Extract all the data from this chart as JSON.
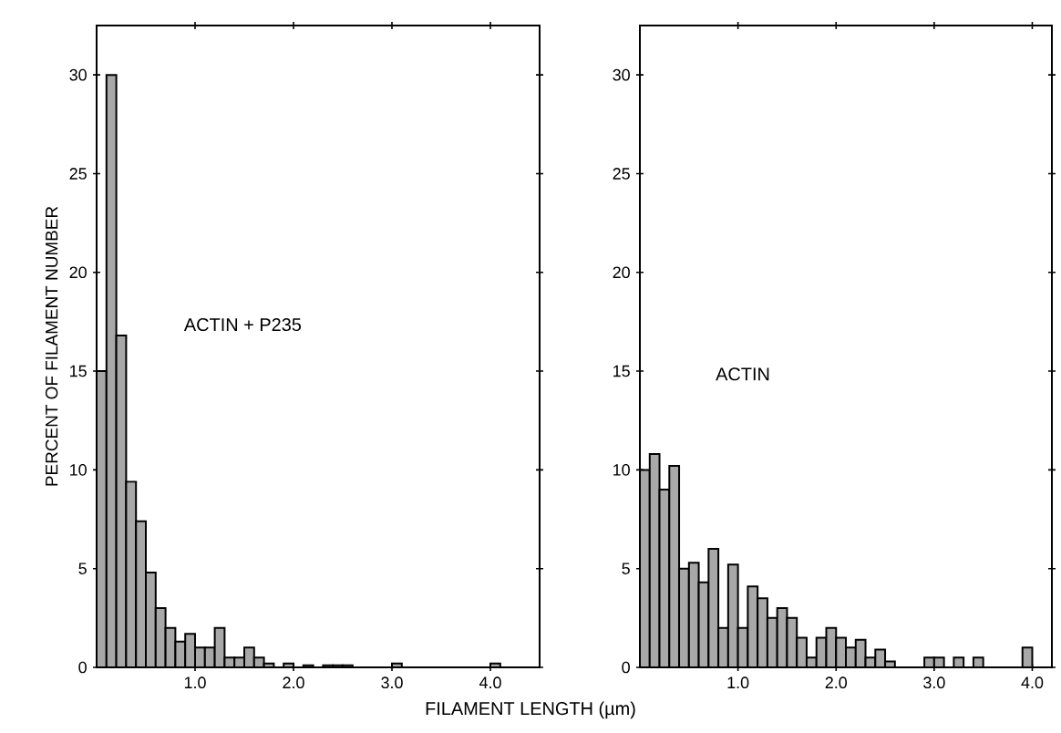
{
  "chart_data": [
    {
      "type": "histogram",
      "ylabel": "PERCENT OF FILAMENT NUMBER",
      "xlabel": "FILAMENT LENGTH (µm)",
      "annotations": [
        "ACTIN + P235"
      ],
      "color": "#a8a8a8",
      "bins": [
        0,
        0.1,
        0.2,
        0.3,
        0.4,
        0.5,
        0.6,
        0.7,
        0.8,
        0.9,
        1.0,
        1.1,
        1.2,
        1.3,
        1.4,
        1.5,
        1.6,
        1.7,
        1.8,
        1.9,
        2.0,
        2.1,
        2.2,
        2.3,
        2.4,
        2.5,
        2.6,
        2.7,
        2.8,
        2.9,
        3.0,
        3.1,
        3.2,
        3.3,
        3.4,
        3.5,
        3.6,
        3.7,
        3.8,
        3.9,
        4.0,
        4.1
      ],
      "values": [
        15,
        30,
        16.8,
        9.4,
        7.4,
        4.8,
        3.0,
        2.0,
        1.3,
        1.7,
        1.0,
        1.0,
        2.0,
        0.5,
        0.5,
        1.0,
        0.5,
        0.2,
        0,
        0.2,
        0,
        0.1,
        0,
        0.1,
        0.1,
        0.1,
        0,
        0,
        0,
        0,
        0.2,
        0,
        0,
        0,
        0,
        0,
        0,
        0,
        0,
        0,
        0.2
      ],
      "xlim": [
        0,
        4.5
      ],
      "ylim": [
        0,
        32.5
      ],
      "xticks": [
        {
          "value": 1,
          "label": "1.0"
        },
        {
          "value": 2,
          "label": "2.0"
        },
        {
          "value": 3,
          "label": "3.0"
        },
        {
          "value": 4,
          "label": "4.0"
        }
      ],
      "yticks": [
        0,
        5,
        10,
        15,
        20,
        25,
        30
      ]
    },
    {
      "type": "histogram",
      "annotations": [
        "ACTIN"
      ],
      "color": "#a8a8a8",
      "bins": [
        0,
        0.1,
        0.2,
        0.3,
        0.4,
        0.5,
        0.6,
        0.7,
        0.8,
        0.9,
        1.0,
        1.1,
        1.2,
        1.3,
        1.4,
        1.5,
        1.6,
        1.7,
        1.8,
        1.9,
        2.0,
        2.1,
        2.2,
        2.3,
        2.4,
        2.5,
        2.6,
        2.7,
        2.8,
        2.9,
        3.0,
        3.1,
        3.2,
        3.3,
        3.4,
        3.5,
        3.6,
        3.7,
        3.8,
        3.9,
        4.0
      ],
      "values": [
        10,
        10.8,
        9,
        10.2,
        5,
        5.3,
        4.3,
        6,
        2,
        5.2,
        2,
        4.1,
        3.5,
        2.5,
        3.0,
        2.5,
        1.5,
        0.5,
        1.5,
        2.0,
        1.5,
        1.0,
        1.4,
        0.5,
        0.9,
        0.3,
        0,
        0,
        0,
        0.5,
        0.5,
        0,
        0.5,
        0,
        0.5,
        0,
        0,
        0,
        0,
        1.0
      ],
      "xlim": [
        0,
        4.2
      ],
      "ylim": [
        0,
        32.5
      ],
      "xticks": [
        {
          "value": 1,
          "label": "1.0"
        },
        {
          "value": 2,
          "label": "2.0"
        },
        {
          "value": 3,
          "label": "3.0"
        },
        {
          "value": 4,
          "label": "4.0"
        }
      ],
      "yticks": [
        0,
        5,
        10,
        15,
        20,
        25,
        30
      ]
    }
  ]
}
